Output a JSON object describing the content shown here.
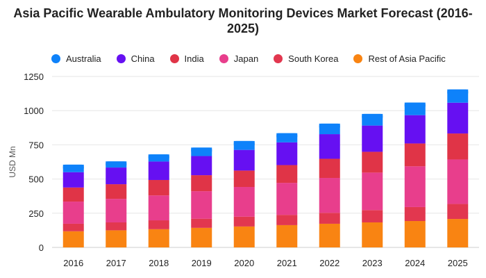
{
  "chart_data": {
    "type": "bar",
    "stacked": true,
    "title": "Asia Pacific Wearable Ambulatory Monitoring Devices Market Forecast (2016-2025)",
    "xlabel": "",
    "ylabel": "USD Mn",
    "ylim": [
      0,
      1250
    ],
    "yticks": [
      0,
      250,
      500,
      750,
      1000,
      1250
    ],
    "grid": true,
    "legend_position": "top",
    "categories": [
      "2016",
      "2017",
      "2018",
      "2019",
      "2020",
      "2021",
      "2022",
      "2023",
      "2024",
      "2025"
    ],
    "series": [
      {
        "name": "Rest of Asia Pacific",
        "color": "#f98412",
        "values": [
          118,
          125,
          133,
          143,
          153,
          163,
          173,
          183,
          193,
          208
        ]
      },
      {
        "name": "South Korea",
        "color": "#e2374f",
        "values": [
          55,
          58,
          65,
          67,
          72,
          75,
          80,
          90,
          102,
          110
        ]
      },
      {
        "name": "Japan",
        "color": "#e83e8c",
        "values": [
          162,
          172,
          182,
          201,
          217,
          234,
          255,
          274,
          298,
          325
        ]
      },
      {
        "name": "India",
        "color": "#e03447",
        "values": [
          103,
          107,
          113,
          117,
          120,
          130,
          140,
          152,
          167,
          190
        ]
      },
      {
        "name": "China",
        "color": "#6610f2",
        "values": [
          112,
          122,
          135,
          140,
          151,
          166,
          180,
          192,
          207,
          225
        ]
      },
      {
        "name": "Australia",
        "color": "#0e82fa",
        "values": [
          55,
          45,
          52,
          62,
          65,
          67,
          77,
          85,
          92,
          97
        ]
      }
    ],
    "legend_order": [
      "Australia",
      "China",
      "India",
      "Japan",
      "South Korea",
      "Rest of Asia Pacific"
    ]
  }
}
